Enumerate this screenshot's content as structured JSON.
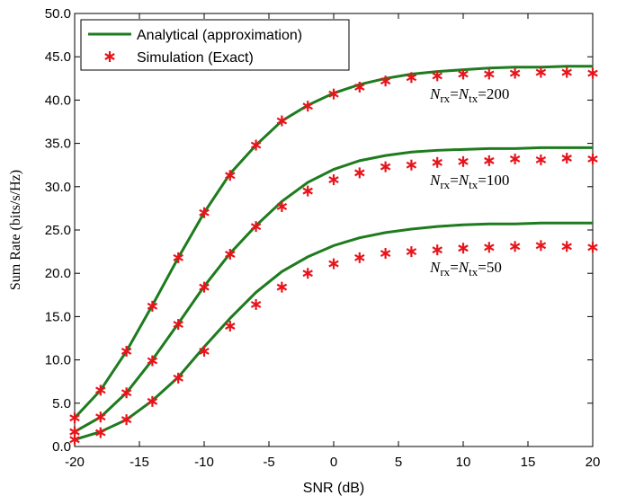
{
  "chart_data": {
    "type": "line",
    "x_label": "SNR (dB)",
    "y_label": "Sum Rate (bits/s/Hz)",
    "legend": [
      "Analytical (approximation)",
      "Simulation (Exact)"
    ],
    "colors": {
      "analytical": "#1e7b1e",
      "simulation": "#e8141b"
    },
    "x": [
      -20,
      -18,
      -16,
      -14,
      -12,
      -10,
      -8,
      -6,
      -4,
      -2,
      0,
      2,
      4,
      6,
      8,
      10,
      12,
      14,
      16,
      18,
      20
    ],
    "series": [
      {
        "label": "Nrx=Ntx=200",
        "analytical": [
          3.3,
          6.5,
          11,
          16.3,
          21.8,
          27,
          31.5,
          34.8,
          37.6,
          39.4,
          40.8,
          41.8,
          42.5,
          43,
          43.3,
          43.5,
          43.7,
          43.8,
          43.8,
          43.9,
          43.9
        ],
        "simulation": [
          3.3,
          6.5,
          11,
          16.2,
          21.8,
          27,
          31.3,
          34.8,
          37.6,
          39.3,
          40.7,
          41.5,
          42.2,
          42.6,
          42.8,
          43,
          43,
          43.1,
          43.2,
          43.2,
          43.1
        ]
      },
      {
        "label": "Nrx=Ntx=100",
        "analytical": [
          1.7,
          3.4,
          6.2,
          10,
          14.2,
          18.5,
          22.3,
          25.5,
          28.3,
          30.5,
          32,
          33,
          33.6,
          34,
          34.2,
          34.3,
          34.4,
          34.4,
          34.5,
          34.5,
          34.5
        ],
        "simulation": [
          1.7,
          3.4,
          6.2,
          9.9,
          14.1,
          18.4,
          22.2,
          25.4,
          27.7,
          29.5,
          30.8,
          31.6,
          32.3,
          32.5,
          32.8,
          32.9,
          33,
          33.2,
          33.1,
          33.3,
          33.2
        ]
      },
      {
        "label": "Nrx=Ntx=50",
        "analytical": [
          0.8,
          1.7,
          3.1,
          5.3,
          8,
          11.5,
          14.8,
          17.8,
          20.2,
          21.9,
          23.2,
          24.1,
          24.7,
          25.1,
          25.4,
          25.6,
          25.7,
          25.7,
          25.8,
          25.8,
          25.8
        ],
        "simulation": [
          0.8,
          1.6,
          3.1,
          5.2,
          7.9,
          11,
          13.9,
          16.4,
          18.4,
          20,
          21.1,
          21.8,
          22.3,
          22.5,
          22.7,
          22.9,
          23,
          23.1,
          23.2,
          23.1,
          23
        ]
      }
    ],
    "xlim": [
      -20,
      20
    ],
    "xticks": [
      -20,
      -15,
      -10,
      -5,
      0,
      5,
      10,
      15,
      20
    ],
    "ylim": [
      0,
      50
    ],
    "yticks": [
      {
        "value": 0,
        "label": "0.0"
      },
      {
        "value": 5,
        "label": "5.0"
      },
      {
        "value": 10,
        "label": "10.0"
      },
      {
        "value": 15,
        "label": "15.0"
      },
      {
        "value": 20,
        "label": "20.0"
      },
      {
        "value": 25,
        "label": "25.0"
      },
      {
        "value": 30,
        "label": "30.0"
      },
      {
        "value": 35,
        "label": "35.0"
      },
      {
        "value": 40,
        "label": "40.0"
      },
      {
        "value": 45,
        "label": "45.0"
      },
      {
        "value": 50,
        "label": "50.0"
      }
    ]
  }
}
